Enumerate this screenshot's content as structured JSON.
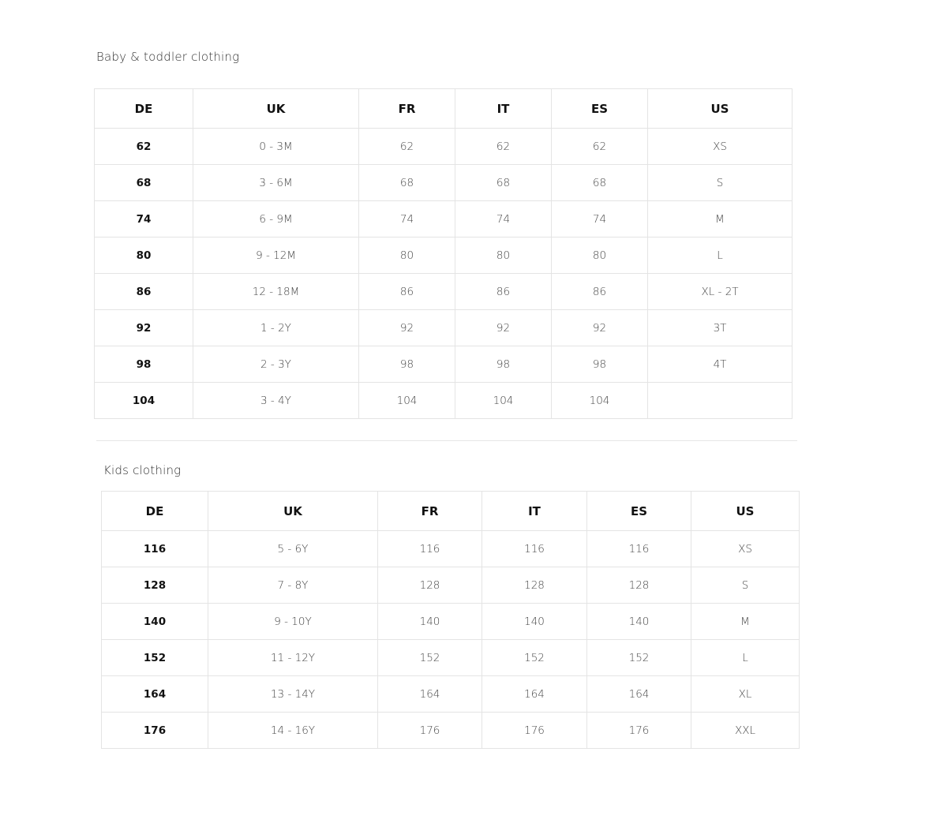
{
  "sections": [
    {
      "title": "Baby & toddler clothing",
      "headers": [
        "DE",
        "UK",
        "FR",
        "IT",
        "ES",
        "US"
      ],
      "rows": [
        [
          "62",
          "0 - 3M",
          "62",
          "62",
          "62",
          "XS"
        ],
        [
          "68",
          "3 - 6M",
          "68",
          "68",
          "68",
          "S"
        ],
        [
          "74",
          "6 - 9M",
          "74",
          "74",
          "74",
          "M"
        ],
        [
          "80",
          "9 - 12M",
          "80",
          "80",
          "80",
          "L"
        ],
        [
          "86",
          "12 - 18M",
          "86",
          "86",
          "86",
          "XL - 2T"
        ],
        [
          "92",
          "1 - 2Y",
          "92",
          "92",
          "92",
          "3T"
        ],
        [
          "98",
          "2 - 3Y",
          "98",
          "98",
          "98",
          "4T"
        ],
        [
          "104",
          "3 - 4Y",
          "104",
          "104",
          "104",
          ""
        ]
      ]
    },
    {
      "title": "Kids clothing",
      "headers": [
        "DE",
        "UK",
        "FR",
        "IT",
        "ES",
        "US"
      ],
      "rows": [
        [
          "116",
          "5 - 6Y",
          "116",
          "116",
          "116",
          "XS"
        ],
        [
          "128",
          "7 - 8Y",
          "128",
          "128",
          "128",
          "S"
        ],
        [
          "140",
          "9 - 10Y",
          "140",
          "140",
          "140",
          "M"
        ],
        [
          "152",
          "11 - 12Y",
          "152",
          "152",
          "152",
          "L"
        ],
        [
          "164",
          "13 - 14Y",
          "164",
          "164",
          "164",
          "XL"
        ],
        [
          "176",
          "14 - 16Y",
          "176",
          "176",
          "176",
          "XXL"
        ]
      ]
    }
  ]
}
